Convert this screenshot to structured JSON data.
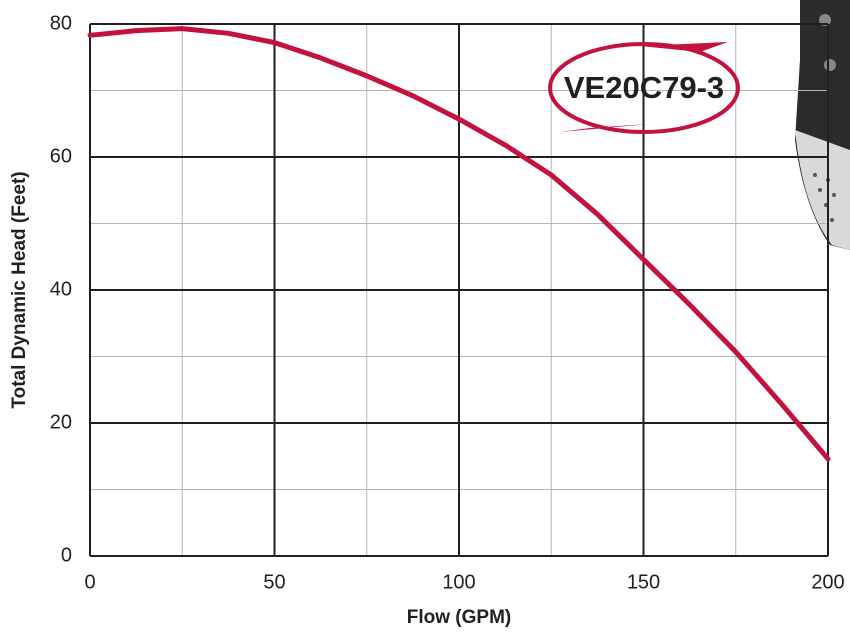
{
  "chart_data": {
    "type": "line",
    "x_label": "Flow (GPM)",
    "y_label": "Total Dynamic Head (Feet)",
    "annotation": "VE20C79-3",
    "x": [
      0,
      12.5,
      25,
      37.5,
      50,
      62.5,
      75,
      87.5,
      100,
      112.5,
      125,
      137.5,
      150,
      162.5,
      175,
      187.5,
      200
    ],
    "series": [
      {
        "color": "#c4123e",
        "values": [
          78.3,
          79.0,
          79.3,
          78.6,
          77.2,
          74.9,
          72.2,
          69.2,
          65.7,
          61.8,
          57.3,
          51.4,
          44.6,
          37.8,
          30.7,
          22.8,
          14.6
        ]
      }
    ],
    "xlim": [
      0,
      200
    ],
    "ylim": [
      0,
      80
    ],
    "xticks": [
      0,
      50,
      100,
      150,
      200
    ],
    "yticks": [
      0,
      20,
      40,
      60,
      80
    ],
    "x_minor_grid": [
      25,
      75,
      125,
      175
    ],
    "y_minor_grid": [
      10,
      30,
      50,
      70
    ],
    "grid": true
  }
}
